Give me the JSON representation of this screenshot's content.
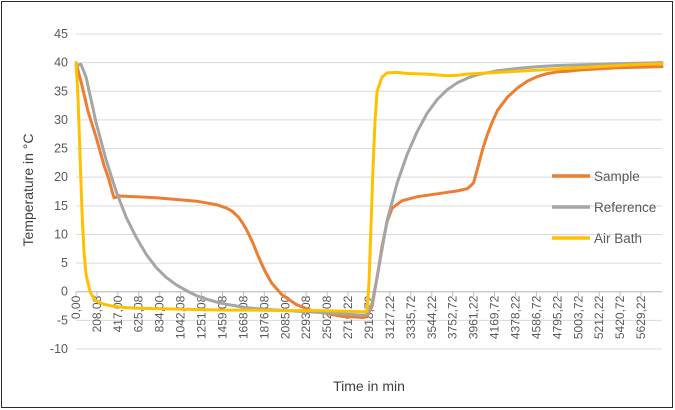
{
  "chart_data": {
    "type": "line",
    "title": "",
    "xlabel": "Time in min",
    "ylabel": "Temperature in °C",
    "xlim": [
      0,
      5838
    ],
    "ylim": [
      -10,
      45
    ],
    "yticks": [
      -10,
      -5,
      0,
      5,
      10,
      15,
      20,
      25,
      30,
      35,
      40,
      45
    ],
    "xtick_values": [
      0,
      208.08,
      417.0,
      625.08,
      834.0,
      1042.08,
      1251.08,
      1459.08,
      1668.08,
      1876.08,
      2085.0,
      2293.08,
      2502.08,
      2710.22,
      2918.72,
      3127.22,
      3335.72,
      3544.22,
      3752.72,
      3961.22,
      4169.72,
      4378.22,
      4586.72,
      4795.22,
      5003.72,
      5212.22,
      5420.72,
      5629.22
    ],
    "xtick_labels": [
      "0,00",
      "208,08",
      "417,00",
      "625,08",
      "834,00",
      "1042,08",
      "1251,08",
      "1459,08",
      "1668,08",
      "1876,08",
      "2085,00",
      "2293,08",
      "2502,08",
      "2710,22",
      "2918,72",
      "3127,22",
      "3335,72",
      "3544,22",
      "3752,72",
      "3961,22",
      "4169,72",
      "4378,22",
      "4586,72",
      "4795,22",
      "5003,72",
      "5212,22",
      "5420,72",
      "5629,22"
    ],
    "grid": "horizontal",
    "legend_position": "right",
    "series": [
      {
        "name": "Sample",
        "color": "#ED7D31",
        "x": [
          0,
          60,
          120,
          200,
          280,
          330,
          360,
          380,
          400,
          417,
          450,
          600,
          800,
          1000,
          1200,
          1400,
          1500,
          1560,
          1620,
          1660,
          1700,
          1760,
          1820,
          1880,
          1950,
          2050,
          2200,
          2350,
          2500,
          2650,
          2760,
          2860,
          2900,
          2950,
          3000,
          3050,
          3100,
          3150,
          3250,
          3400,
          3600,
          3800,
          3900,
          3960,
          4000,
          4050,
          4100,
          4150,
          4200,
          4300,
          4400,
          4500,
          4600,
          4700,
          4800,
          4900,
          5000,
          5200,
          5400,
          5600,
          5838
        ],
        "y": [
          40,
          36,
          31.5,
          27,
          22,
          19.5,
          17.5,
          16.4,
          16.5,
          16.8,
          16.7,
          16.6,
          16.4,
          16.1,
          15.8,
          15.2,
          14.6,
          14.0,
          13.0,
          12.0,
          10.8,
          8.6,
          6.0,
          3.7,
          1.5,
          -0.5,
          -2.3,
          -3.3,
          -3.8,
          -4.3,
          -4.4,
          -4.5,
          -4.3,
          -2.5,
          2.5,
          8.0,
          12.3,
          14.6,
          15.9,
          16.6,
          17.1,
          17.6,
          18.0,
          19.0,
          21.5,
          24.8,
          27.5,
          29.8,
          31.7,
          34.0,
          35.6,
          36.8,
          37.6,
          38.1,
          38.4,
          38.5,
          38.7,
          38.9,
          39.1,
          39.2,
          39.3
        ]
      },
      {
        "name": "Reference",
        "color": "#A5A5A5",
        "x": [
          0,
          50,
          100,
          150,
          200,
          300,
          400,
          500,
          600,
          700,
          800,
          900,
          1000,
          1100,
          1200,
          1300,
          1400,
          1500,
          1600,
          1700,
          1900,
          2100,
          2300,
          2500,
          2700,
          2850,
          2900,
          2950,
          3000,
          3050,
          3100,
          3200,
          3300,
          3400,
          3500,
          3600,
          3700,
          3800,
          3900,
          4000,
          4200,
          4400,
          4600,
          4800,
          5000,
          5200,
          5400,
          5600,
          5838
        ],
        "y": [
          39.5,
          39.7,
          37.5,
          33.5,
          29.5,
          23,
          17.5,
          13.0,
          9.5,
          6.5,
          4.2,
          2.5,
          1.2,
          0.2,
          -0.7,
          -1.3,
          -1.8,
          -2.2,
          -2.5,
          -2.8,
          -3.1,
          -3.3,
          -3.5,
          -3.7,
          -3.9,
          -4.1,
          -4.0,
          -2.0,
          2.5,
          7.5,
          12.5,
          19.0,
          24.0,
          28.0,
          31.2,
          33.6,
          35.3,
          36.5,
          37.3,
          37.9,
          38.6,
          39.0,
          39.3,
          39.5,
          39.6,
          39.7,
          39.8,
          39.9,
          40.0
        ]
      },
      {
        "name": "Air Bath",
        "color": "#FFC000",
        "x": [
          0,
          20,
          40,
          60,
          80,
          100,
          140,
          180,
          220,
          280,
          360,
          450,
          600,
          900,
          1200,
          1500,
          1800,
          2100,
          2400,
          2700,
          2850,
          2900,
          2920,
          2940,
          2960,
          2980,
          3000,
          3050,
          3100,
          3200,
          3300,
          3500,
          3700,
          3800,
          3900,
          4000,
          4200,
          4400,
          4600,
          4800,
          5000,
          5200,
          5400,
          5600,
          5838
        ],
        "y": [
          40,
          34,
          24,
          14,
          7,
          3,
          0,
          -1.3,
          -1.8,
          -2.2,
          -2.5,
          -2.7,
          -2.9,
          -3.0,
          -3.1,
          -3.2,
          -3.2,
          -3.3,
          -3.3,
          -3.4,
          -3.5,
          -3.4,
          2.0,
          12.0,
          22.0,
          30.0,
          35.0,
          37.5,
          38.2,
          38.3,
          38.1,
          38.0,
          37.7,
          37.8,
          38.0,
          38.1,
          38.3,
          38.5,
          38.7,
          38.9,
          39.1,
          39.3,
          39.5,
          39.7,
          39.8
        ]
      }
    ]
  }
}
